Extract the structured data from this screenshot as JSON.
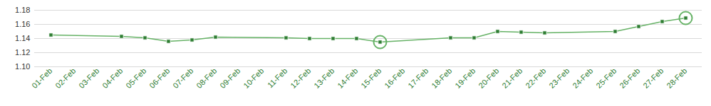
{
  "chart_data": {
    "type": "line",
    "x": [
      "01-Feb",
      "04-Feb",
      "05-Feb",
      "06-Feb",
      "07-Feb",
      "08-Feb",
      "11-Feb",
      "12-Feb",
      "13-Feb",
      "14-Feb",
      "15-Feb",
      "18-Feb",
      "19-Feb",
      "20-Feb",
      "21-Feb",
      "22-Feb",
      "25-Feb",
      "26-Feb",
      "27-Feb",
      "28-Feb"
    ],
    "values": [
      1.145,
      1.143,
      1.141,
      1.136,
      1.138,
      1.142,
      1.141,
      1.14,
      1.14,
      1.14,
      1.135,
      1.141,
      1.141,
      1.15,
      1.149,
      1.148,
      1.15,
      1.157,
      1.164,
      1.169
    ],
    "xticks": [
      "01-Feb",
      "02-Feb",
      "03-Feb",
      "04-Feb",
      "05-Feb",
      "06-Feb",
      "07-Feb",
      "08-Feb",
      "09-Feb",
      "10-Feb",
      "11-Feb",
      "12-Feb",
      "13-Feb",
      "14-Feb",
      "15-Feb",
      "16-Feb",
      "17-Feb",
      "18-Feb",
      "19-Feb",
      "20-Feb",
      "21-Feb",
      "22-Feb",
      "23-Feb",
      "24-Feb",
      "25-Feb",
      "26-Feb",
      "27-Feb",
      "28-Feb"
    ],
    "ylim": [
      1.1,
      1.18
    ],
    "yticks": [
      {
        "value": 1.1,
        "label": "1.10"
      },
      {
        "value": 1.12,
        "label": "1.12"
      },
      {
        "value": 1.14,
        "label": "1.14"
      },
      {
        "value": 1.16,
        "label": "1.16"
      },
      {
        "value": 1.18,
        "label": "1.18"
      }
    ],
    "grid": true,
    "color": "#66b266",
    "marker": "square"
  }
}
